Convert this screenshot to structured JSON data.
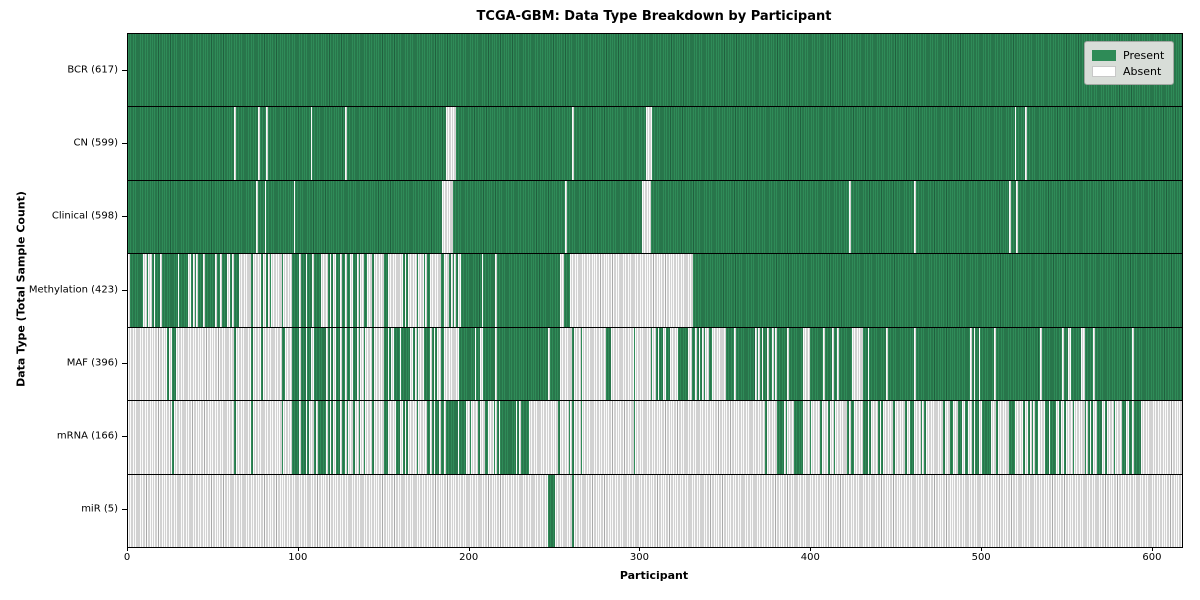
{
  "chart_data": {
    "type": "heatmap",
    "title": "TCGA-GBM: Data Type Breakdown by Participant",
    "xlabel": "Participant",
    "ylabel": "Data Type (Total Sample Count)",
    "x_ticks": [
      0,
      100,
      200,
      300,
      400,
      500,
      600
    ],
    "x_range": [
      0,
      617
    ],
    "n_participants": 617,
    "cell_states": [
      "Present",
      "Absent"
    ],
    "grid": "row separators only, black",
    "legend": {
      "position": "upper right",
      "entries": [
        {
          "label": "Present",
          "color": "#2e8b57"
        },
        {
          "label": "Absent",
          "color": "#ffffff"
        }
      ]
    },
    "colors": {
      "present": "#2e8b57",
      "present_edge": "#20603e",
      "absent": "#ffffff",
      "absent_edge": "#a8a8a8",
      "spine": "#000000",
      "legend_bg": "#d8ddd8"
    },
    "pattern_note": "Per-participant presence read from pixels; mixed regions encoded as segments with approximate present_fraction; explicit cols/runs are exact visible stripes.",
    "rows": [
      {
        "data_type": "BCR",
        "total_samples": 617,
        "label": "BCR (617)",
        "pattern": {
          "segments": [
            {
              "from": 0,
              "to": 617,
              "present_fraction": 1
            }
          ]
        }
      },
      {
        "data_type": "CN",
        "total_samples": 599,
        "label": "CN (599)",
        "pattern": {
          "segments": [
            {
              "from": 0,
              "to": 617,
              "present_fraction": 1
            }
          ],
          "absent_cols": [
            62,
            76,
            81,
            107,
            127,
            260,
            519,
            525
          ],
          "absent_runs": [
            [
              186,
              192
            ],
            [
              303,
              307
            ]
          ]
        }
      },
      {
        "data_type": "Clinical",
        "total_samples": 598,
        "label": "Clinical (598)",
        "pattern": {
          "segments": [
            {
              "from": 0,
              "to": 617,
              "present_fraction": 1
            }
          ],
          "absent_cols": [
            75,
            80,
            97,
            256,
            422,
            460,
            516,
            520
          ],
          "absent_runs": [
            [
              184,
              190
            ],
            [
              301,
              306
            ]
          ]
        }
      },
      {
        "data_type": "Methylation",
        "total_samples": 423,
        "label": "Methylation (423)",
        "pattern": {
          "segments": [
            {
              "from": 0,
              "to": 58,
              "present_fraction": 0.75
            },
            {
              "from": 58,
              "to": 98,
              "present_fraction": 0.15
            },
            {
              "from": 98,
              "to": 113,
              "present_fraction": 0.85
            },
            {
              "from": 113,
              "to": 130,
              "present_fraction": 0.45
            },
            {
              "from": 130,
              "to": 142,
              "present_fraction": 0.7
            },
            {
              "from": 142,
              "to": 165,
              "present_fraction": 0.2
            },
            {
              "from": 165,
              "to": 177,
              "present_fraction": 0.5
            },
            {
              "from": 177,
              "to": 195,
              "present_fraction": 0.25
            },
            {
              "from": 195,
              "to": 259,
              "present_fraction": 0.95
            },
            {
              "from": 259,
              "to": 331,
              "present_fraction": 0.0
            },
            {
              "from": 331,
              "to": 421,
              "present_fraction": 0.99
            },
            {
              "from": 421,
              "to": 617,
              "present_fraction": 1.0
            }
          ]
        }
      },
      {
        "data_type": "MAF",
        "total_samples": 396,
        "label": "MAF (396)",
        "pattern": {
          "segments": [
            {
              "from": 0,
              "to": 18,
              "present_fraction": 0.05
            },
            {
              "from": 18,
              "to": 35,
              "present_fraction": 0.2
            },
            {
              "from": 35,
              "to": 90,
              "present_fraction": 0.05
            },
            {
              "from": 90,
              "to": 136,
              "present_fraction": 0.7
            },
            {
              "from": 136,
              "to": 152,
              "present_fraction": 0.4
            },
            {
              "from": 152,
              "to": 187,
              "present_fraction": 0.65
            },
            {
              "from": 187,
              "to": 193,
              "present_fraction": 0.0
            },
            {
              "from": 193,
              "to": 207,
              "present_fraction": 0.8
            },
            {
              "from": 207,
              "to": 255,
              "present_fraction": 0.92
            },
            {
              "from": 255,
              "to": 281,
              "present_fraction": 0.15
            },
            {
              "from": 281,
              "to": 283,
              "present_fraction": 1.0
            },
            {
              "from": 283,
              "to": 306,
              "present_fraction": 0.1
            },
            {
              "from": 306,
              "to": 322,
              "present_fraction": 0.5
            },
            {
              "from": 322,
              "to": 343,
              "present_fraction": 0.8
            },
            {
              "from": 343,
              "to": 350,
              "present_fraction": 0.15
            },
            {
              "from": 350,
              "to": 390,
              "present_fraction": 0.85
            },
            {
              "from": 390,
              "to": 400,
              "present_fraction": 0.5
            },
            {
              "from": 400,
              "to": 423,
              "present_fraction": 0.85
            },
            {
              "from": 423,
              "to": 435,
              "present_fraction": 0.3
            },
            {
              "from": 435,
              "to": 545,
              "present_fraction": 0.93
            },
            {
              "from": 545,
              "to": 560,
              "present_fraction": 0.7
            },
            {
              "from": 560,
              "to": 617,
              "present_fraction": 0.95
            }
          ]
        }
      },
      {
        "data_type": "mRNA",
        "total_samples": 166,
        "label": "mRNA (166)",
        "pattern": {
          "segments": [
            {
              "from": 0,
              "to": 25,
              "present_fraction": 0.02
            },
            {
              "from": 25,
              "to": 35,
              "present_fraction": 0.15
            },
            {
              "from": 35,
              "to": 90,
              "present_fraction": 0.03
            },
            {
              "from": 90,
              "to": 120,
              "present_fraction": 0.5
            },
            {
              "from": 120,
              "to": 180,
              "present_fraction": 0.4
            },
            {
              "from": 180,
              "to": 197,
              "present_fraction": 0.8
            },
            {
              "from": 197,
              "to": 215,
              "present_fraction": 0.35
            },
            {
              "from": 215,
              "to": 235,
              "present_fraction": 0.75
            },
            {
              "from": 235,
              "to": 258,
              "present_fraction": 0.1
            },
            {
              "from": 258,
              "to": 263,
              "present_fraction": 0.6
            },
            {
              "from": 263,
              "to": 310,
              "present_fraction": 0.05
            },
            {
              "from": 310,
              "to": 370,
              "present_fraction": 0.08
            },
            {
              "from": 370,
              "to": 480,
              "present_fraction": 0.35
            },
            {
              "from": 480,
              "to": 510,
              "present_fraction": 0.6
            },
            {
              "from": 510,
              "to": 585,
              "present_fraction": 0.35
            },
            {
              "from": 585,
              "to": 593,
              "present_fraction": 0.9
            },
            {
              "from": 593,
              "to": 617,
              "present_fraction": 0.02
            }
          ]
        }
      },
      {
        "data_type": "miR",
        "total_samples": 5,
        "label": "miR (5)",
        "pattern": {
          "segments": [
            {
              "from": 0,
              "to": 617,
              "present_fraction": 0.0
            }
          ],
          "present_runs": [
            [
              246,
              250
            ],
            [
              260,
              261
            ]
          ]
        }
      }
    ]
  }
}
